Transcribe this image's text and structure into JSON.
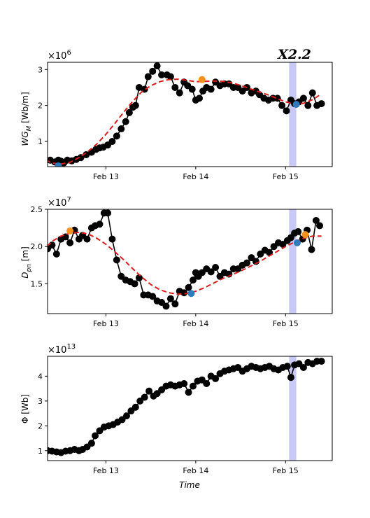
{
  "figure_label": "X2.2",
  "x_ticks": [
    "Feb 13",
    "Feb 14",
    "Feb 15"
  ],
  "x_label": "Time",
  "colors": {
    "obs": "#000000",
    "fit": "#dd1c1c",
    "min_marker": "#2e7bbd",
    "max_marker": "#f5911e",
    "flare_band": "#c9c9f7"
  },
  "chart_data": [
    {
      "type": "scatter",
      "ylabel": "WG_M [Wb/m]",
      "multiplier": "×10^6",
      "ylim": [
        0.3,
        3.2
      ],
      "yticks": [
        1,
        2,
        3
      ],
      "xlim": [
        12.35,
        15.52
      ],
      "flare_band": [
        15.04,
        15.12
      ],
      "series": [
        {
          "style": "points+line",
          "x": [
            12.2,
            12.27,
            12.33,
            12.38,
            12.43,
            12.47,
            12.5,
            12.53,
            12.57,
            12.62,
            12.67,
            12.72,
            12.78,
            12.84,
            12.89,
            12.93,
            12.97,
            13.02,
            13.07,
            13.12,
            13.17,
            13.22,
            13.26,
            13.3,
            13.33,
            13.37,
            13.43,
            13.47,
            13.52,
            13.57,
            13.62,
            13.68,
            13.72,
            13.77,
            13.82,
            13.87,
            13.91,
            13.96,
            14.0,
            14.04,
            14.08,
            14.12,
            14.17,
            14.22,
            14.27,
            14.32,
            14.37,
            14.42,
            14.47,
            14.52,
            14.57,
            14.62,
            14.67,
            14.71,
            14.76,
            14.81,
            14.86,
            14.91,
            14.96,
            15.01,
            15.06,
            15.1,
            15.15,
            15.2,
            15.25,
            15.3,
            15.35,
            15.4
          ],
          "y": [
            0.52,
            0.5,
            0.47,
            0.48,
            0.43,
            0.48,
            0.45,
            0.4,
            0.48,
            0.46,
            0.5,
            0.55,
            0.63,
            0.7,
            0.78,
            0.82,
            0.84,
            0.9,
            1.0,
            1.15,
            1.35,
            1.55,
            1.8,
            1.95,
            2.0,
            2.5,
            2.45,
            2.8,
            2.95,
            3.1,
            2.85,
            2.85,
            2.8,
            2.5,
            2.35,
            2.65,
            2.55,
            2.45,
            2.15,
            2.2,
            2.4,
            2.5,
            2.45,
            2.65,
            2.55,
            2.6,
            2.6,
            2.5,
            2.5,
            2.4,
            2.5,
            2.35,
            2.4,
            2.3,
            2.2,
            2.15,
            2.2,
            2.2,
            2.0,
            1.85,
            2.15,
            2.05,
            2.1,
            2.2,
            2.0,
            2.35,
            2.0,
            2.05
          ]
        },
        {
          "style": "dashed-fit",
          "x": [
            12.2,
            12.3,
            12.4,
            12.5,
            12.6,
            12.7,
            12.8,
            12.9,
            13.0,
            13.1,
            13.2,
            13.3,
            13.4,
            13.5,
            13.6,
            13.7,
            13.8,
            13.9,
            14.0,
            14.1,
            14.2,
            14.3,
            14.4,
            14.5,
            14.6,
            14.7,
            14.8,
            14.9,
            15.0,
            15.1,
            15.2,
            15.3,
            15.4
          ],
          "y": [
            0.75,
            0.52,
            0.4,
            0.37,
            0.42,
            0.55,
            0.72,
            0.93,
            1.2,
            1.5,
            1.82,
            2.12,
            2.38,
            2.55,
            2.66,
            2.72,
            2.73,
            2.7,
            2.66,
            2.67,
            2.68,
            2.67,
            2.63,
            2.56,
            2.47,
            2.38,
            2.3,
            2.2,
            2.1,
            2.04,
            2.06,
            2.16,
            2.32
          ]
        },
        {
          "style": "min-marker",
          "x": [
            12.47
          ],
          "y": [
            0.32
          ]
        },
        {
          "style": "max-marker",
          "x": [
            14.07
          ],
          "y": [
            2.72
          ]
        },
        {
          "style": "min-marker",
          "x": [
            15.12
          ],
          "y": [
            2.03
          ]
        }
      ]
    },
    {
      "type": "scatter",
      "ylabel": "D_pn [m]",
      "multiplier": "×10^7",
      "ylim": [
        1.1,
        2.5
      ],
      "yticks": [
        1.5,
        2.0,
        2.5
      ],
      "xlim": [
        12.35,
        15.52
      ],
      "flare_band": [
        15.04,
        15.12
      ],
      "series": [
        {
          "style": "points+line",
          "x": [
            12.2,
            12.25,
            12.3,
            12.35,
            12.4,
            12.45,
            12.5,
            12.55,
            12.6,
            12.65,
            12.7,
            12.74,
            12.79,
            12.84,
            12.88,
            12.93,
            12.98,
            13.02,
            13.07,
            13.12,
            13.17,
            13.22,
            13.27,
            13.32,
            13.37,
            13.42,
            13.47,
            13.52,
            13.57,
            13.62,
            13.67,
            13.72,
            13.77,
            13.82,
            13.87,
            13.92,
            13.97,
            14.0,
            14.03,
            14.07,
            14.12,
            14.17,
            14.22,
            14.27,
            14.32,
            14.37,
            14.42,
            14.47,
            14.52,
            14.57,
            14.62,
            14.67,
            14.72,
            14.77,
            14.82,
            14.87,
            14.92,
            14.97,
            15.02,
            15.06,
            15.1,
            15.14,
            15.19,
            15.24,
            15.29,
            15.34,
            15.38
          ],
          "y": [
            1.88,
            1.95,
            1.96,
            1.97,
            2.02,
            1.9,
            2.1,
            2.13,
            2.05,
            2.22,
            2.1,
            2.15,
            2.1,
            2.25,
            2.28,
            2.3,
            2.45,
            2.45,
            2.1,
            1.82,
            1.6,
            1.55,
            1.53,
            1.5,
            1.58,
            1.35,
            1.35,
            1.33,
            1.27,
            1.25,
            1.2,
            1.3,
            1.23,
            1.4,
            1.38,
            1.45,
            1.55,
            1.65,
            1.6,
            1.65,
            1.7,
            1.66,
            1.72,
            1.6,
            1.65,
            1.63,
            1.7,
            1.7,
            1.75,
            1.78,
            1.85,
            1.8,
            1.9,
            1.95,
            1.92,
            2.0,
            2.05,
            2.03,
            2.08,
            2.12,
            2.18,
            2.2,
            2.1,
            2.22,
            1.96,
            2.35,
            2.28
          ]
        },
        {
          "style": "dashed-fit",
          "x": [
            12.2,
            12.3,
            12.4,
            12.5,
            12.6,
            12.7,
            12.8,
            12.9,
            13.0,
            13.1,
            13.2,
            13.3,
            13.4,
            13.5,
            13.6,
            13.7,
            13.8,
            13.9,
            14.0,
            14.1,
            14.2,
            14.3,
            14.4,
            14.5,
            14.6,
            14.7,
            14.8,
            14.9,
            15.0,
            15.1,
            15.2,
            15.3,
            15.4
          ],
          "y": [
            1.75,
            1.95,
            2.07,
            2.14,
            2.18,
            2.19,
            2.17,
            2.11,
            2.03,
            1.93,
            1.82,
            1.7,
            1.59,
            1.49,
            1.42,
            1.38,
            1.36,
            1.37,
            1.4,
            1.45,
            1.51,
            1.57,
            1.62,
            1.67,
            1.73,
            1.79,
            1.86,
            1.93,
            2.0,
            2.06,
            2.11,
            2.14,
            2.14
          ]
        },
        {
          "style": "max-marker",
          "x": [
            12.6
          ],
          "y": [
            2.21
          ]
        },
        {
          "style": "min-marker",
          "x": [
            13.95
          ],
          "y": [
            1.37
          ]
        },
        {
          "style": "max-marker",
          "x": [
            15.22
          ],
          "y": [
            2.16
          ]
        },
        {
          "style": "min-marker",
          "x": [
            15.13
          ],
          "y": [
            2.05
          ]
        }
      ]
    },
    {
      "type": "scatter",
      "ylabel": "Φ [Wb]",
      "multiplier": "×10^13",
      "ylim": [
        0.6,
        4.8
      ],
      "yticks": [
        1,
        2,
        3,
        4
      ],
      "xlim": [
        12.35,
        15.52
      ],
      "flare_band": [
        15.04,
        15.12
      ],
      "series": [
        {
          "style": "points+line",
          "x": [
            12.2,
            12.25,
            12.3,
            12.35,
            12.4,
            12.45,
            12.5,
            12.55,
            12.6,
            12.65,
            12.7,
            12.74,
            12.79,
            12.84,
            12.88,
            12.93,
            12.98,
            13.03,
            13.08,
            13.13,
            13.18,
            13.23,
            13.28,
            13.33,
            13.38,
            13.43,
            13.48,
            13.53,
            13.57,
            13.62,
            13.67,
            13.72,
            13.77,
            13.82,
            13.87,
            13.92,
            13.97,
            14.02,
            14.07,
            14.12,
            14.17,
            14.22,
            14.27,
            14.32,
            14.37,
            14.42,
            14.47,
            14.52,
            14.57,
            14.62,
            14.67,
            14.72,
            14.77,
            14.82,
            14.87,
            14.92,
            14.97,
            15.02,
            15.06,
            15.1,
            15.15,
            15.2,
            15.25,
            15.3,
            15.35,
            15.4
          ],
          "y": [
            0.98,
            1.05,
            1.02,
            1.0,
            0.98,
            0.95,
            0.92,
            0.98,
            1.0,
            1.05,
            1.0,
            1.05,
            1.15,
            1.3,
            1.6,
            1.8,
            1.95,
            2.0,
            2.05,
            2.15,
            2.25,
            2.4,
            2.6,
            2.75,
            3.0,
            3.15,
            3.4,
            3.2,
            3.3,
            3.45,
            3.6,
            3.65,
            3.6,
            3.65,
            3.7,
            3.35,
            3.6,
            3.8,
            3.85,
            3.7,
            4.0,
            3.9,
            4.1,
            4.2,
            4.25,
            4.3,
            4.35,
            4.2,
            4.3,
            4.4,
            4.35,
            4.3,
            4.35,
            4.4,
            4.3,
            4.25,
            4.35,
            4.4,
            3.95,
            4.45,
            4.5,
            4.35,
            4.55,
            4.5,
            4.6,
            4.6
          ]
        }
      ]
    }
  ]
}
